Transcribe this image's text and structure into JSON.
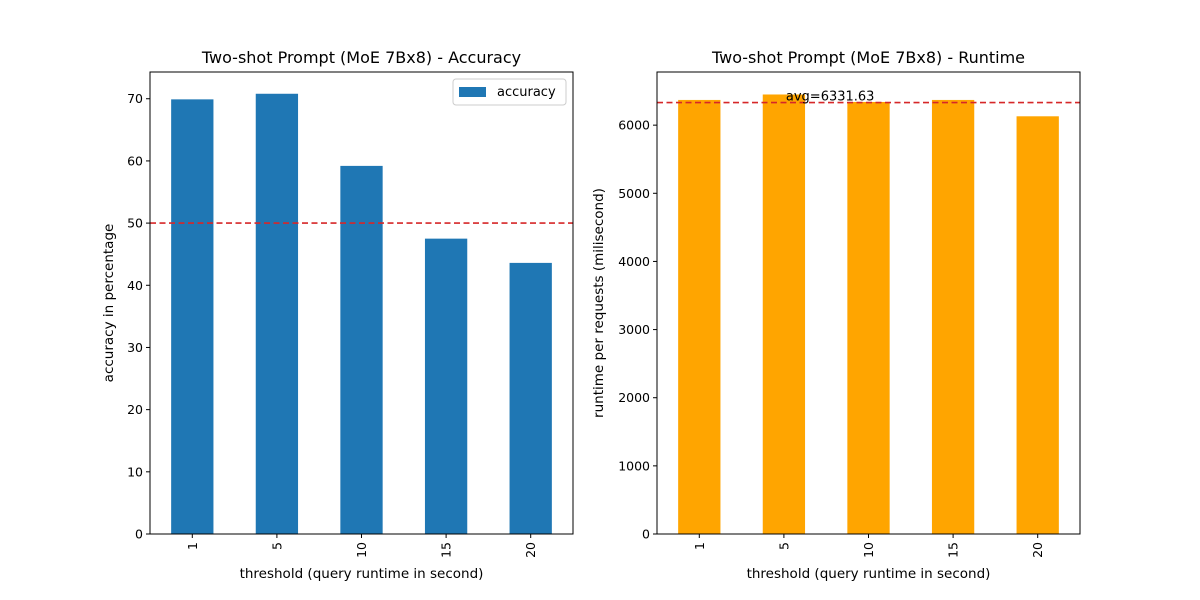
{
  "chart_data": [
    {
      "type": "bar",
      "title": "Two-shot Prompt (MoE 7Bx8) - Accuracy",
      "xlabel": "threshold (query runtime in second)",
      "ylabel": "accuracy in percentage",
      "categories": [
        "1",
        "5",
        "10",
        "15",
        "20"
      ],
      "series": [
        {
          "name": "accuracy",
          "values": [
            69.9,
            70.8,
            59.2,
            47.5,
            43.6
          ],
          "color": "#1f77b4"
        }
      ],
      "ylim": [
        0,
        74.3
      ],
      "yticks": [
        0,
        10,
        20,
        30,
        40,
        50,
        60,
        70
      ],
      "reference_line": {
        "value": 50,
        "color": "#d62728",
        "style": "dashed"
      },
      "legend": {
        "position": "top-right"
      },
      "grid": false
    },
    {
      "type": "bar",
      "title": "Two-shot Prompt (MoE 7Bx8) - Runtime",
      "xlabel": "threshold (query runtime in second)",
      "ylabel": "runtime per requests (milisecond)",
      "categories": [
        "1",
        "5",
        "10",
        "15",
        "20"
      ],
      "series": [
        {
          "values": [
            6370,
            6450,
            6340,
            6370,
            6130
          ],
          "color": "#ffa500"
        }
      ],
      "ylim": [
        0,
        6780
      ],
      "yticks": [
        0,
        1000,
        2000,
        3000,
        4000,
        5000,
        6000
      ],
      "reference_line": {
        "value": 6331.63,
        "color": "#d62728",
        "style": "dashed"
      },
      "annotation": {
        "text": "avg=6331.63",
        "x_category": "5",
        "y": 6331.63
      },
      "grid": false
    }
  ]
}
